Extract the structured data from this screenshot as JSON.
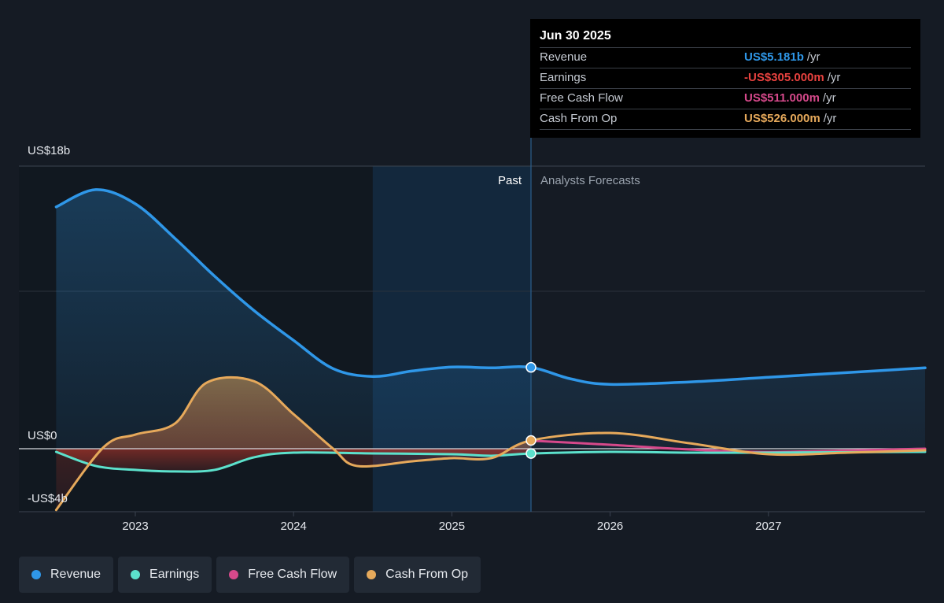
{
  "chart_data": {
    "type": "line",
    "x_ticks": [
      "2023",
      "2024",
      "2025",
      "2026",
      "2027"
    ],
    "y_ticks": [
      "US$18b",
      "US$0",
      "-US$4b"
    ],
    "ylim": [
      -4,
      18
    ],
    "past_label": "Past",
    "forecast_label": "Analysts Forecasts",
    "series": [
      {
        "name": "Revenue",
        "color": "#2f97e8",
        "points": [
          [
            2022.5,
            15.4
          ],
          [
            2022.75,
            16.5
          ],
          [
            2023.0,
            15.6
          ],
          [
            2023.25,
            13.4
          ],
          [
            2023.5,
            11.0
          ],
          [
            2023.75,
            8.8
          ],
          [
            2024.0,
            6.9
          ],
          [
            2024.25,
            5.1
          ],
          [
            2024.5,
            4.6
          ],
          [
            2024.75,
            4.95
          ],
          [
            2025.0,
            5.2
          ],
          [
            2025.25,
            5.15
          ],
          [
            2025.5,
            5.181
          ],
          [
            2025.75,
            4.45
          ],
          [
            2026.0,
            4.1
          ],
          [
            2026.5,
            4.25
          ],
          [
            2027.0,
            4.55
          ],
          [
            2027.5,
            4.85
          ],
          [
            2027.99,
            5.15
          ]
        ]
      },
      {
        "name": "Earnings",
        "color": "#5ce1cc",
        "points": [
          [
            2022.5,
            -0.2
          ],
          [
            2022.75,
            -1.1
          ],
          [
            2023.0,
            -1.35
          ],
          [
            2023.25,
            -1.45
          ],
          [
            2023.5,
            -1.35
          ],
          [
            2023.75,
            -0.55
          ],
          [
            2024.0,
            -0.25
          ],
          [
            2024.5,
            -0.3
          ],
          [
            2025.0,
            -0.35
          ],
          [
            2025.25,
            -0.45
          ],
          [
            2025.5,
            -0.305
          ],
          [
            2026.0,
            -0.2
          ],
          [
            2026.5,
            -0.25
          ],
          [
            2027.0,
            -0.25
          ],
          [
            2027.99,
            -0.2
          ]
        ]
      },
      {
        "name": "Free Cash Flow",
        "color": "#d6498b",
        "points": [
          [
            2025.5,
            0.511
          ],
          [
            2026.0,
            0.25
          ],
          [
            2026.5,
            -0.05
          ],
          [
            2027.0,
            -0.2
          ],
          [
            2027.99,
            0.0
          ]
        ]
      },
      {
        "name": "Cash From Op",
        "color": "#e6a95b",
        "points": [
          [
            2022.5,
            -3.9
          ],
          [
            2022.8,
            0.1
          ],
          [
            2023.0,
            0.9
          ],
          [
            2023.25,
            1.6
          ],
          [
            2023.45,
            4.2
          ],
          [
            2023.75,
            4.3
          ],
          [
            2024.0,
            2.2
          ],
          [
            2024.25,
            0.0
          ],
          [
            2024.4,
            -1.1
          ],
          [
            2024.75,
            -0.8
          ],
          [
            2025.0,
            -0.6
          ],
          [
            2025.25,
            -0.6
          ],
          [
            2025.5,
            0.526
          ],
          [
            2026.0,
            1.0
          ],
          [
            2026.5,
            0.35
          ],
          [
            2027.0,
            -0.35
          ],
          [
            2027.5,
            -0.25
          ],
          [
            2027.99,
            -0.1
          ]
        ]
      }
    ]
  },
  "tooltip": {
    "date": "Jun 30 2025",
    "rows": [
      {
        "label": "Revenue",
        "value": "US$5.181b",
        "unit": "/yr",
        "color": "#2f97e8"
      },
      {
        "label": "Earnings",
        "value": "-US$305.000m",
        "unit": "/yr",
        "color": "#e8423f"
      },
      {
        "label": "Free Cash Flow",
        "value": "US$511.000m",
        "unit": "/yr",
        "color": "#d6498b"
      },
      {
        "label": "Cash From Op",
        "value": "US$526.000m",
        "unit": "/yr",
        "color": "#e6a95b"
      }
    ]
  },
  "legend": [
    {
      "label": "Revenue",
      "color": "#2f97e8"
    },
    {
      "label": "Earnings",
      "color": "#5ce1cc"
    },
    {
      "label": "Free Cash Flow",
      "color": "#d6498b"
    },
    {
      "label": "Cash From Op",
      "color": "#e6a95b"
    }
  ]
}
